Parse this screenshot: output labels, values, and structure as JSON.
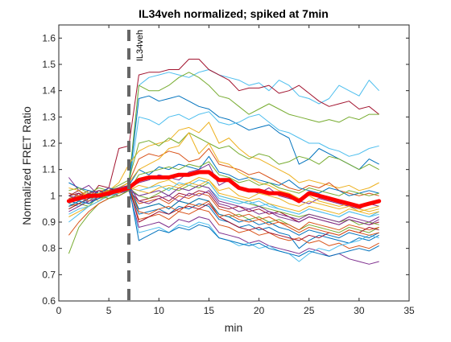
{
  "chart_data": {
    "type": "line",
    "title": "IL34veh normalized; spiked at 7min",
    "xlabel": "min",
    "ylabel": "Normalized FRET Ratio",
    "xlim": [
      0,
      35
    ],
    "ylim": [
      0.6,
      1.65
    ],
    "xticks": [
      0,
      5,
      10,
      15,
      20,
      25,
      30,
      35
    ],
    "yticks": [
      0.6,
      0.7,
      0.8,
      0.9,
      1,
      1.1,
      1.2,
      1.3,
      1.4,
      1.5,
      1.6
    ],
    "grid": false,
    "x": [
      1,
      2,
      3,
      4,
      5,
      6,
      7,
      8,
      9,
      10,
      11,
      12,
      13,
      14,
      15,
      16,
      17,
      18,
      19,
      20,
      21,
      22,
      23,
      24,
      25,
      26,
      27,
      28,
      29,
      30,
      31,
      32
    ],
    "marker_line": {
      "x": 7,
      "label": "IL34veh",
      "color": "#666666"
    },
    "mean_series": {
      "color": "#ff0000",
      "values": [
        0.98,
        0.99,
        1.0,
        1.0,
        1.01,
        1.02,
        1.03,
        1.06,
        1.07,
        1.07,
        1.07,
        1.08,
        1.08,
        1.09,
        1.09,
        1.06,
        1.06,
        1.03,
        1.02,
        1.02,
        1.01,
        1.01,
        1.0,
        0.98,
        1.01,
        1.0,
        0.99,
        0.98,
        0.97,
        0.96,
        0.97,
        0.98
      ]
    },
    "series": [
      {
        "color": "#4dbeee",
        "values": [
          0.97,
          0.96,
          0.99,
          1.0,
          1.0,
          1.01,
          1.02,
          1.42,
          1.45,
          1.46,
          1.47,
          1.46,
          1.45,
          1.47,
          1.48,
          1.46,
          1.45,
          1.44,
          1.42,
          1.43,
          1.4,
          1.44,
          1.42,
          1.38,
          1.37,
          1.35,
          1.37,
          1.42,
          1.4,
          1.38,
          1.44,
          1.4
        ]
      },
      {
        "color": "#a2142f",
        "values": [
          1.0,
          1.02,
          0.99,
          1.04,
          1.03,
          1.18,
          1.19,
          1.46,
          1.47,
          1.47,
          1.48,
          1.48,
          1.52,
          1.52,
          1.48,
          1.46,
          1.44,
          1.4,
          1.41,
          1.41,
          1.42,
          1.39,
          1.4,
          1.42,
          1.39,
          1.36,
          1.34,
          1.35,
          1.36,
          1.33,
          1.34,
          1.31
        ]
      },
      {
        "color": "#77ac30",
        "values": [
          0.95,
          0.97,
          0.96,
          1.0,
          1.02,
          1.03,
          1.05,
          1.42,
          1.4,
          1.4,
          1.42,
          1.45,
          1.47,
          1.45,
          1.42,
          1.38,
          1.37,
          1.34,
          1.31,
          1.33,
          1.35,
          1.33,
          1.31,
          1.3,
          1.29,
          1.28,
          1.29,
          1.28,
          1.3,
          1.29,
          1.31,
          1.31
        ]
      },
      {
        "color": "#0072bd",
        "values": [
          1.0,
          1.01,
          0.99,
          1.02,
          1.0,
          1.01,
          1.04,
          1.37,
          1.38,
          1.36,
          1.37,
          1.38,
          1.36,
          1.34,
          1.33,
          1.3,
          1.29,
          1.27,
          1.25,
          1.26,
          1.27,
          1.24,
          1.22,
          1.12,
          1.14,
          1.18,
          1.16,
          1.14,
          1.12,
          1.1,
          1.14,
          1.12
        ]
      },
      {
        "color": "#4dbeee",
        "values": [
          0.93,
          0.95,
          0.96,
          0.98,
          1.0,
          1.02,
          1.03,
          1.3,
          1.29,
          1.27,
          1.3,
          1.31,
          1.29,
          1.31,
          1.32,
          1.28,
          1.27,
          1.28,
          1.3,
          1.31,
          1.28,
          1.25,
          1.24,
          1.22,
          1.2,
          1.2,
          1.18,
          1.17,
          1.15,
          1.16,
          1.18,
          1.19
        ]
      },
      {
        "color": "#edb120",
        "values": [
          0.98,
          1.0,
          1.01,
          1.02,
          1.02,
          1.05,
          1.12,
          1.17,
          1.19,
          1.2,
          1.21,
          1.25,
          1.26,
          1.24,
          1.28,
          1.2,
          1.22,
          1.18,
          1.15,
          1.14,
          1.12,
          1.1,
          1.08,
          1.05,
          1.06,
          1.05,
          1.04,
          1.03,
          1.04,
          1.02,
          1.03,
          1.05
        ]
      },
      {
        "color": "#77ac30",
        "values": [
          1.0,
          0.98,
          1.01,
          1.03,
          1.02,
          1.04,
          1.06,
          1.2,
          1.21,
          1.19,
          1.22,
          1.2,
          1.24,
          1.22,
          1.2,
          1.18,
          1.19,
          1.16,
          1.14,
          1.16,
          1.15,
          1.12,
          1.13,
          1.15,
          1.14,
          1.12,
          1.15,
          1.14,
          1.12,
          1.1,
          1.12,
          1.1
        ]
      },
      {
        "color": "#d95319",
        "values": [
          0.96,
          0.97,
          0.99,
          1.01,
          1.02,
          1.03,
          1.05,
          1.14,
          1.16,
          1.15,
          1.17,
          1.16,
          1.13,
          1.14,
          1.18,
          1.12,
          1.11,
          1.1,
          1.08,
          1.09,
          1.07,
          1.05,
          1.03,
          1.02,
          1.04,
          1.03,
          1.05,
          1.02,
          1.01,
          1.0,
          1.01,
          1.0
        ]
      },
      {
        "color": "#0072bd",
        "values": [
          1.01,
          1.0,
          1.02,
          1.01,
          1.03,
          1.02,
          1.04,
          1.1,
          1.08,
          1.11,
          1.1,
          1.12,
          1.11,
          1.1,
          1.15,
          1.09,
          1.08,
          1.06,
          1.07,
          1.06,
          1.05,
          1.04,
          1.06,
          1.03,
          1.02,
          1.01,
          1.03,
          1.02,
          1.0,
          1.01,
          1.02,
          1.01
        ]
      },
      {
        "color": "#7e2f8e",
        "values": [
          0.98,
          1.01,
          0.97,
          1.0,
          1.02,
          1.01,
          1.03,
          1.05,
          1.06,
          1.08,
          1.07,
          1.06,
          1.09,
          1.1,
          1.12,
          1.04,
          1.06,
          1.03,
          1.02,
          1.01,
          1.03,
          1.0,
          0.99,
          0.98,
          0.97,
          0.99,
          0.98,
          0.97,
          0.96,
          0.95,
          0.97,
          0.96
        ]
      },
      {
        "color": "#edb120",
        "values": [
          0.97,
          0.99,
          1.0,
          0.98,
          1.01,
          1.02,
          1.02,
          1.04,
          1.03,
          1.05,
          1.06,
          1.04,
          1.05,
          1.07,
          1.06,
          1.02,
          1.03,
          1.0,
          0.99,
          1.01,
          1.0,
          0.99,
          0.97,
          0.96,
          0.98,
          0.97,
          0.96,
          0.95,
          0.96,
          0.94,
          0.95,
          0.96
        ]
      },
      {
        "color": "#4dbeee",
        "values": [
          0.99,
          0.98,
          1.0,
          1.01,
          1.0,
          1.02,
          1.03,
          1.0,
          1.01,
          1.02,
          1.0,
          1.03,
          1.02,
          1.04,
          1.03,
          0.99,
          0.98,
          0.97,
          0.98,
          0.96,
          0.97,
          0.95,
          0.94,
          0.93,
          0.95,
          0.94,
          0.93,
          0.92,
          0.94,
          0.93,
          0.92,
          0.94
        ]
      },
      {
        "color": "#a2142f",
        "values": [
          1.0,
          1.01,
          0.99,
          1.02,
          1.01,
          1.0,
          1.02,
          0.98,
          0.99,
          1.0,
          0.98,
          1.01,
          1.0,
          1.02,
          1.01,
          0.96,
          0.95,
          0.96,
          0.94,
          0.95,
          0.93,
          0.94,
          0.92,
          0.9,
          0.92,
          0.91,
          0.9,
          0.89,
          0.91,
          0.9,
          0.89,
          0.9
        ]
      },
      {
        "color": "#77ac30",
        "values": [
          0.96,
          0.98,
          0.97,
          0.99,
          1.0,
          1.01,
          1.02,
          0.95,
          0.96,
          0.97,
          0.95,
          0.98,
          0.97,
          0.99,
          0.98,
          0.93,
          0.92,
          0.93,
          0.91,
          0.92,
          0.9,
          0.91,
          0.89,
          0.87,
          0.89,
          0.88,
          0.87,
          0.86,
          0.88,
          0.87,
          0.86,
          0.88
        ]
      },
      {
        "color": "#0072bd",
        "values": [
          0.98,
          0.97,
          0.99,
          1.0,
          0.99,
          1.01,
          1.02,
          0.93,
          0.94,
          0.95,
          0.93,
          0.96,
          0.95,
          0.97,
          0.96,
          0.91,
          0.9,
          0.88,
          0.89,
          0.87,
          0.88,
          0.86,
          0.85,
          0.8,
          0.83,
          0.85,
          0.84,
          0.83,
          0.82,
          0.84,
          0.83,
          0.85
        ]
      },
      {
        "color": "#d95319",
        "values": [
          1.01,
          1.0,
          1.02,
          1.0,
          1.01,
          1.02,
          1.03,
          0.91,
          0.92,
          0.93,
          0.91,
          0.94,
          0.93,
          0.95,
          0.94,
          0.89,
          0.88,
          0.86,
          0.87,
          0.85,
          0.86,
          0.84,
          0.83,
          0.84,
          0.82,
          0.83,
          0.81,
          0.82,
          0.8,
          0.81,
          0.8,
          0.82
        ]
      },
      {
        "color": "#7e2f8e",
        "values": [
          0.94,
          0.96,
          0.98,
          0.99,
          1.01,
          1.0,
          1.02,
          0.88,
          0.89,
          0.9,
          0.88,
          0.91,
          0.9,
          0.92,
          0.91,
          0.86,
          0.85,
          0.84,
          0.82,
          0.83,
          0.81,
          0.8,
          0.79,
          0.78,
          0.8,
          0.79,
          0.77,
          0.78,
          0.76,
          0.75,
          0.74,
          0.75
        ]
      },
      {
        "color": "#4dbeee",
        "values": [
          0.97,
          0.99,
          0.98,
          1.0,
          1.02,
          1.01,
          1.03,
          0.86,
          0.87,
          0.88,
          0.86,
          0.89,
          0.88,
          0.9,
          0.89,
          0.84,
          0.83,
          0.81,
          0.82,
          0.8,
          0.81,
          0.79,
          0.78,
          0.75,
          0.78,
          0.8,
          0.79,
          0.81,
          0.82,
          0.83,
          0.85,
          0.84
        ]
      },
      {
        "color": "#edb120",
        "values": [
          0.92,
          0.94,
          0.96,
          0.98,
          1.0,
          1.03,
          1.05,
          1.1,
          1.12,
          1.14,
          1.18,
          1.19,
          1.24,
          1.16,
          1.2,
          1.13,
          1.12,
          1.09,
          1.07,
          1.05,
          1.04,
          1.02,
          1.01,
          0.99,
          1.0,
          0.98,
          0.97,
          0.96,
          0.97,
          0.95,
          0.94,
          0.95
        ]
      },
      {
        "color": "#77ac30",
        "values": [
          0.78,
          0.88,
          0.93,
          0.97,
          0.99,
          1.01,
          1.03,
          1.0,
          0.99,
          1.01,
          1.03,
          1.02,
          1.04,
          1.03,
          1.05,
          1.0,
          0.99,
          0.98,
          0.97,
          0.96,
          0.95,
          0.94,
          0.93,
          0.92,
          0.93,
          0.92,
          0.91,
          0.9,
          0.91,
          0.89,
          0.9,
          0.89
        ]
      },
      {
        "color": "#d95319",
        "values": [
          0.85,
          0.9,
          0.94,
          0.97,
          0.99,
          1.0,
          1.02,
          0.97,
          0.98,
          0.99,
          0.97,
          1.0,
          0.99,
          1.01,
          1.0,
          0.95,
          0.94,
          0.92,
          0.93,
          0.91,
          0.92,
          0.9,
          0.89,
          0.87,
          0.9,
          0.89,
          0.88,
          0.87,
          0.89,
          0.88,
          0.87,
          0.88
        ]
      },
      {
        "color": "#0072bd",
        "values": [
          1.05,
          1.03,
          1.02,
          1.01,
          1.0,
          1.02,
          1.04,
          0.95,
          0.96,
          0.97,
          0.95,
          0.98,
          0.97,
          0.99,
          0.98,
          0.93,
          0.92,
          0.9,
          0.91,
          0.89,
          0.9,
          0.88,
          0.87,
          0.85,
          0.87,
          0.86,
          0.85,
          0.84,
          0.86,
          0.85,
          0.84,
          0.86
        ]
      },
      {
        "color": "#7e2f8e",
        "values": [
          1.07,
          1.02,
          1.04,
          1.0,
          1.03,
          1.01,
          1.02,
          1.0,
          1.01,
          1.02,
          1.0,
          1.03,
          1.02,
          1.04,
          1.03,
          0.98,
          0.97,
          0.96,
          0.95,
          0.96,
          0.94,
          0.93,
          0.92,
          0.91,
          0.93,
          0.92,
          0.91,
          0.9,
          0.92,
          0.91,
          0.9,
          0.92
        ]
      },
      {
        "color": "#4dbeee",
        "values": [
          0.9,
          0.93,
          0.96,
          0.98,
          1.0,
          1.01,
          1.03,
          1.02,
          1.03,
          1.04,
          1.02,
          1.05,
          1.04,
          1.06,
          1.05,
          1.0,
          0.99,
          0.98,
          0.97,
          0.98,
          0.96,
          0.95,
          0.94,
          0.93,
          0.95,
          0.94,
          0.93,
          0.92,
          0.94,
          0.93,
          0.92,
          0.93
        ]
      },
      {
        "color": "#a2142f",
        "values": [
          0.95,
          0.97,
          0.99,
          1.01,
          1.02,
          1.03,
          1.04,
          0.9,
          0.92,
          0.94,
          0.93,
          0.95,
          0.96,
          0.95,
          0.97,
          0.92,
          0.9,
          0.88,
          0.87,
          0.88,
          0.86,
          0.85,
          0.84,
          0.83,
          0.85,
          0.84,
          0.86,
          0.85,
          0.87,
          0.86,
          0.88,
          0.87
        ]
      },
      {
        "color": "#77ac30",
        "values": [
          1.02,
          1.03,
          1.01,
          1.0,
          0.99,
          1.0,
          1.02,
          1.08,
          1.09,
          1.1,
          1.11,
          1.1,
          1.12,
          1.11,
          1.13,
          1.08,
          1.07,
          1.05,
          1.06,
          1.04,
          1.05,
          1.03,
          1.02,
          1.01,
          1.03,
          1.02,
          1.01,
          1.0,
          1.02,
          1.01,
          1.0,
          1.01
        ]
      },
      {
        "color": "#d95319",
        "values": [
          0.99,
          1.0,
          0.98,
          1.01,
          1.0,
          1.02,
          1.03,
          0.94,
          0.93,
          0.95,
          0.96,
          0.94,
          0.97,
          0.96,
          0.98,
          0.92,
          0.93,
          0.91,
          0.9,
          0.91,
          0.89,
          0.9,
          0.88,
          0.86,
          0.88,
          0.87,
          0.86,
          0.85,
          0.87,
          0.86,
          0.85,
          0.86
        ]
      },
      {
        "color": "#edb120",
        "values": [
          1.03,
          1.02,
          1.0,
          1.01,
          1.02,
          1.01,
          1.03,
          1.02,
          1.01,
          1.03,
          1.04,
          1.03,
          1.05,
          1.04,
          1.06,
          1.01,
          1.0,
          0.99,
          0.98,
          0.99,
          0.97,
          0.96,
          0.95,
          0.94,
          0.96,
          0.95,
          0.94,
          0.93,
          0.95,
          0.94,
          0.93,
          0.94
        ]
      },
      {
        "color": "#0072bd",
        "values": [
          0.96,
          0.98,
          0.97,
          0.99,
          1.01,
          1.02,
          1.04,
          0.83,
          0.85,
          0.87,
          0.86,
          0.88,
          0.87,
          0.89,
          0.88,
          0.84,
          0.83,
          0.82,
          0.81,
          0.82,
          0.8,
          0.79,
          0.78,
          0.77,
          0.79,
          0.78,
          0.77,
          0.78,
          0.79,
          0.8,
          0.79,
          0.81
        ]
      },
      {
        "color": "#7e2f8e",
        "values": [
          1.0,
          0.99,
          1.01,
          1.02,
          1.0,
          1.03,
          1.04,
          0.98,
          0.97,
          0.99,
          1.0,
          0.98,
          1.01,
          1.0,
          1.02,
          0.97,
          0.96,
          0.94,
          0.95,
          0.93,
          0.94,
          0.92,
          0.91,
          0.9,
          0.92,
          0.91,
          0.9,
          0.89,
          0.91,
          0.9,
          0.89,
          0.91
        ]
      }
    ]
  }
}
